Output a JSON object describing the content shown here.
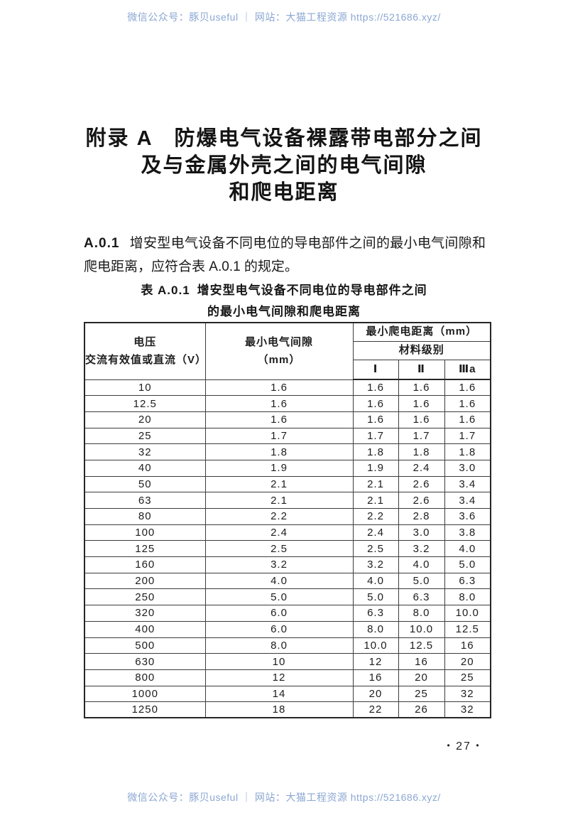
{
  "watermark": {
    "top_text": "微信公众号：豚贝useful ｜ 网站：大猫工程资源 https://521686.xyz/",
    "bottom_text": "微信公众号：豚贝useful ｜ 网站：大猫工程资源 https://521686.xyz/",
    "color": "#8ba7d3"
  },
  "title": {
    "line1": "附录 A　防爆电气设备裸露带电部分之间",
    "line2": "及与金属外壳之间的电气间隙",
    "line3": "和爬电距离"
  },
  "clause": {
    "number": "A.0.1",
    "text": "增安型电气设备不同电位的导电部件之间的最小电气间隙和爬电距离，应符合表 A.0.1 的规定。"
  },
  "table": {
    "caption_number": "表 A.0.1",
    "caption_line1": "增安型电气设备不同电位的导电部件之间",
    "caption_line2": "的最小电气间隙和爬电距离",
    "headers": {
      "voltage_line1": "电压",
      "voltage_line2": "交流有效值或直流（V）",
      "clearance_line1": "最小电气间隙",
      "clearance_line2": "（mm）",
      "creepage": "最小爬电距离（mm）",
      "material_grade": "材料级别",
      "grades": [
        "Ⅰ",
        "Ⅱ",
        "Ⅲa"
      ]
    },
    "rows": [
      [
        "10",
        "1.6",
        "1.6",
        "1.6",
        "1.6"
      ],
      [
        "12.5",
        "1.6",
        "1.6",
        "1.6",
        "1.6"
      ],
      [
        "20",
        "1.6",
        "1.6",
        "1.6",
        "1.6"
      ],
      [
        "25",
        "1.7",
        "1.7",
        "1.7",
        "1.7"
      ],
      [
        "32",
        "1.8",
        "1.8",
        "1.8",
        "1.8"
      ],
      [
        "40",
        "1.9",
        "1.9",
        "2.4",
        "3.0"
      ],
      [
        "50",
        "2.1",
        "2.1",
        "2.6",
        "3.4"
      ],
      [
        "63",
        "2.1",
        "2.1",
        "2.6",
        "3.4"
      ],
      [
        "80",
        "2.2",
        "2.2",
        "2.8",
        "3.6"
      ],
      [
        "100",
        "2.4",
        "2.4",
        "3.0",
        "3.8"
      ],
      [
        "125",
        "2.5",
        "2.5",
        "3.2",
        "4.0"
      ],
      [
        "160",
        "3.2",
        "3.2",
        "4.0",
        "5.0"
      ],
      [
        "200",
        "4.0",
        "4.0",
        "5.0",
        "6.3"
      ],
      [
        "250",
        "5.0",
        "5.0",
        "6.3",
        "8.0"
      ],
      [
        "320",
        "6.0",
        "6.3",
        "8.0",
        "10.0"
      ],
      [
        "400",
        "6.0",
        "8.0",
        "10.0",
        "12.5"
      ],
      [
        "500",
        "8.0",
        "10.0",
        "12.5",
        "16"
      ],
      [
        "630",
        "10",
        "12",
        "16",
        "20"
      ],
      [
        "800",
        "12",
        "16",
        "20",
        "25"
      ],
      [
        "1000",
        "14",
        "20",
        "25",
        "32"
      ],
      [
        "1250",
        "18",
        "22",
        "26",
        "32"
      ]
    ]
  },
  "page_number": {
    "value": "27",
    "left_dot": "•",
    "right_dot": "•"
  }
}
